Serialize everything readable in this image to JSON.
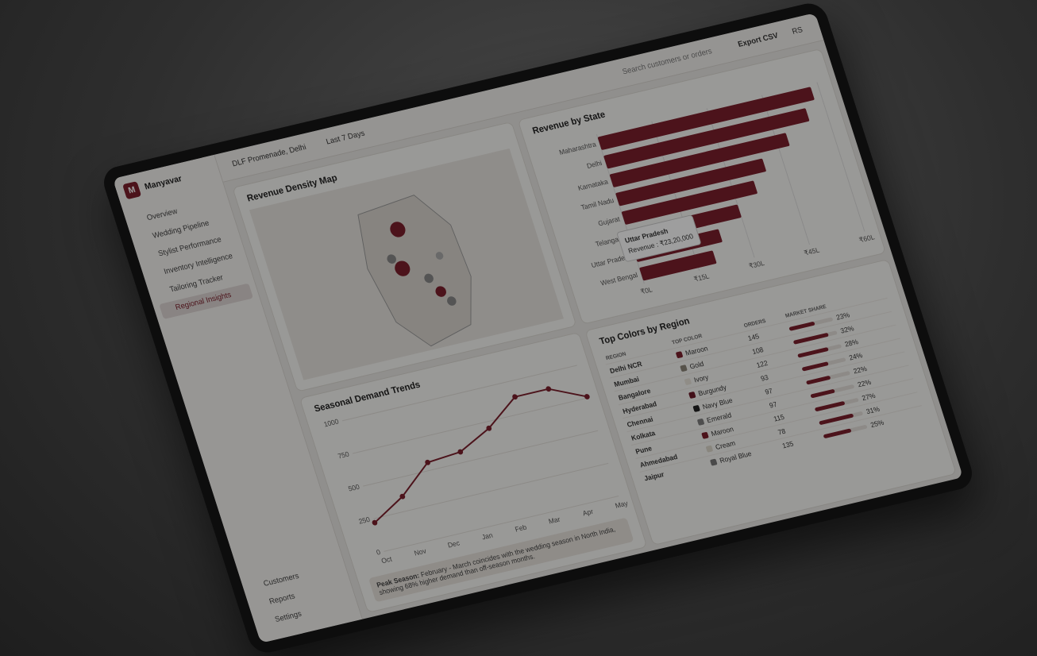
{
  "app": {
    "logo": "M",
    "name": "Manyavar",
    "store": "DLF Promenade, Delhi",
    "period": "Last 7 Days",
    "search": "Search customers or orders",
    "export": "Export CSV",
    "user": "RS"
  },
  "nav": [
    "Overview",
    "Wedding Pipeline",
    "Stylist Performance",
    "Inventory Intelligence",
    "Tailoring Tracker",
    "Regional Insights"
  ],
  "footer_nav": [
    "Customers",
    "Reports",
    "Settings"
  ],
  "map": {
    "title": "Revenue Density Map"
  },
  "revenue_chart": {
    "type": "bar",
    "title": "Revenue by State",
    "color": "#7a1f2b",
    "categories": [
      "Maharashtra",
      "Delhi",
      "Karnataka",
      "Tamil Nadu",
      "Gujarat",
      "Telangana",
      "Uttar Pradesh",
      "West Bengal"
    ],
    "values": [
      58,
      55,
      48,
      40,
      36,
      30,
      23.2,
      20
    ],
    "xlim": [
      0,
      60
    ],
    "xticks": [
      {
        "value": 0,
        "label": "₹0L"
      },
      {
        "value": 15,
        "label": "₹15L"
      },
      {
        "value": 30,
        "label": "₹30L"
      },
      {
        "value": 45,
        "label": "₹45L"
      },
      {
        "value": 60,
        "label": "₹60L"
      }
    ],
    "tooltip": {
      "title": "Uttar Pradesh",
      "label": "Revenue : ₹23,20,000"
    }
  },
  "seasonal_chart": {
    "type": "line",
    "title": "Seasonal Demand Trends",
    "color": "#7a1f2b",
    "categories": [
      "Oct",
      "Nov",
      "Dec",
      "Jan",
      "Feb",
      "Mar",
      "Apr",
      "May"
    ],
    "values": [
      220,
      360,
      560,
      580,
      700,
      880,
      880,
      760
    ],
    "ylim": [
      0,
      1000
    ],
    "yticks": [
      0,
      250,
      500,
      750,
      1000
    ],
    "note_label": "Peak Season:",
    "note": "February - March coincides with the wedding season in North India, showing 68% higher demand than off-season months."
  },
  "table": {
    "title": "Top Colors by Region",
    "headers": [
      "REGION",
      "TOP COLOR",
      "ORDERS",
      "MARKET SHARE"
    ],
    "rows": [
      {
        "region": "Delhi NCR",
        "color": "Maroon",
        "swatch": "#7a1f2b",
        "orders": 145,
        "share": 23,
        "share_label": "23%"
      },
      {
        "region": "Mumbai",
        "color": "Gold",
        "swatch": "#8a8478",
        "orders": 108,
        "share": 32,
        "share_label": "32%"
      },
      {
        "region": "Bangalore",
        "color": "Ivory",
        "swatch": "#e8e4da",
        "orders": 122,
        "share": 28,
        "share_label": "28%"
      },
      {
        "region": "Hyderabad",
        "color": "Burgundy",
        "swatch": "#6b1a28",
        "orders": 93,
        "share": 24,
        "share_label": "24%"
      },
      {
        "region": "Chennai",
        "color": "Navy Blue",
        "swatch": "#222",
        "orders": 97,
        "share": 22,
        "share_label": "22%"
      },
      {
        "region": "Kolkata",
        "color": "Emerald",
        "swatch": "#7d7d7d",
        "orders": 97,
        "share": 22,
        "share_label": "22%"
      },
      {
        "region": "Pune",
        "color": "Maroon",
        "swatch": "#7a1f2b",
        "orders": 115,
        "share": 27,
        "share_label": "27%"
      },
      {
        "region": "Ahmedabad",
        "color": "Cream",
        "swatch": "#ddd8cc",
        "orders": 78,
        "share": 31,
        "share_label": "31%"
      },
      {
        "region": "Jaipur",
        "color": "Royal Blue",
        "swatch": "#777",
        "orders": 135,
        "share": 25,
        "share_label": "25%"
      }
    ]
  }
}
